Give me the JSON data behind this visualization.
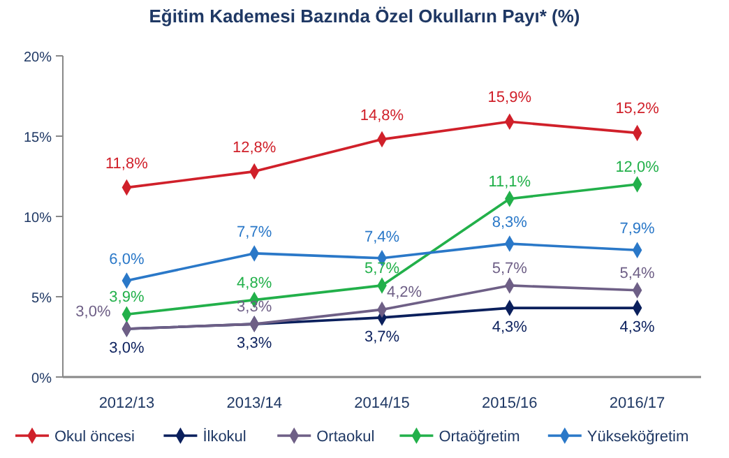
{
  "chart_data": {
    "type": "line",
    "title": "Eğitim Kademesi Bazında Özel Okulların Payı* (%)",
    "categories": [
      "2012/13",
      "2013/14",
      "2014/15",
      "2015/16",
      "2016/17"
    ],
    "series": [
      {
        "name": "Okul öncesi",
        "color": "#d0202a",
        "values": [
          11.8,
          12.8,
          14.8,
          15.9,
          15.2
        ],
        "value_labels": [
          "11,8%",
          "12,8%",
          "14,8%",
          "15,9%",
          "15,2%"
        ]
      },
      {
        "name": "İlkokul",
        "color": "#0a1f5c",
        "values": [
          3.0,
          3.3,
          3.7,
          4.3,
          4.3
        ],
        "value_labels": [
          "3,0%",
          "3,3%",
          "3,7%",
          "4,3%",
          "4,3%"
        ]
      },
      {
        "name": "Ortaokul",
        "color": "#6e5f86",
        "values": [
          3.0,
          3.3,
          4.2,
          5.7,
          5.4
        ],
        "value_labels": [
          "3,0%",
          "3,3%",
          "4,2%",
          "5,7%",
          "5,4%"
        ]
      },
      {
        "name": "Ortaöğretim",
        "color": "#22b04a",
        "values": [
          3.9,
          4.8,
          5.7,
          11.1,
          12.0
        ],
        "value_labels": [
          "3,9%",
          "4,8%",
          "5,7%",
          "11,1%",
          "12,0%"
        ]
      },
      {
        "name": "Yükseköğretim",
        "color": "#2a78c8",
        "values": [
          6.0,
          7.7,
          7.4,
          8.3,
          7.9
        ],
        "value_labels": [
          "6,0%",
          "7,7%",
          "7,4%",
          "8,3%",
          "7,9%"
        ]
      }
    ],
    "ylim": [
      0,
      20
    ],
    "yticks": [
      {
        "value": 0,
        "label": "0%"
      },
      {
        "value": 5,
        "label": "5%"
      },
      {
        "value": 10,
        "label": "10%"
      },
      {
        "value": 15,
        "label": "15%"
      },
      {
        "value": 20,
        "label": "20%"
      }
    ],
    "marker": "diamond",
    "line_style": "solid",
    "legend": "bottom",
    "grid": false
  }
}
